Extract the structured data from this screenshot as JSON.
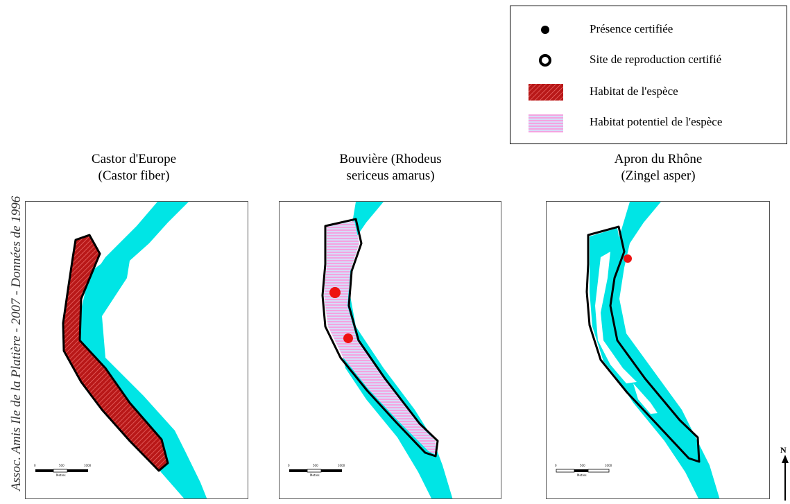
{
  "legend": {
    "items": [
      {
        "symbol": "filled-dot",
        "label": "Présence certifiée"
      },
      {
        "symbol": "ring",
        "label": "Site de reproduction certifié"
      },
      {
        "symbol": "red-hatch",
        "label": "Habitat de l'espèce"
      },
      {
        "symbol": "pink-hatch",
        "label": "Habitat potentiel de l'espèce"
      }
    ]
  },
  "maps": [
    {
      "title_line1": "Castor d'Europe",
      "title_line2": "(Castor fiber)",
      "habitat": "red-hatch",
      "points": []
    },
    {
      "title_line1": "Bouvière (Rhodeus",
      "title_line2": "sericeus amarus)",
      "habitat": "pink-hatch",
      "points": [
        "presence",
        "presence"
      ]
    },
    {
      "title_line1": "Apron du Rhône",
      "title_line2": "(Zingel asper)",
      "habitat": "none",
      "points": [
        "presence"
      ]
    }
  ],
  "scalebar_ticks": [
    "0",
    "500",
    "1000"
  ],
  "scalebar_unit": "Metres",
  "credit": "Assoc. Amis Ile de la Platière - 2007 - Données de 1996",
  "north_label": "N",
  "colors": {
    "water": "#00e5e5",
    "habitat": "#d42a2a",
    "potential_habitat": "#f07cd2",
    "point": "#ee1111",
    "outline": "#000000"
  }
}
